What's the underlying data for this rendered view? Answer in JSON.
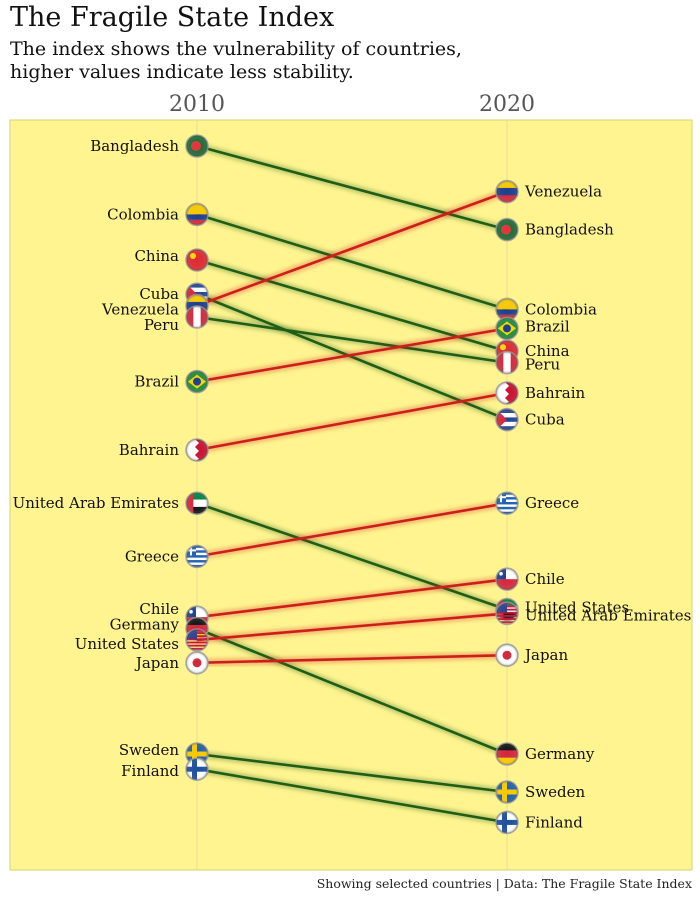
{
  "chart_data": {
    "type": "slope",
    "title": "The Fragile State Index",
    "subtitle_lines": [
      "The index shows the vulnerability of countries,",
      "higher values indicate less stability."
    ],
    "caption": "Showing selected countries | Data: The Fragile State Index",
    "x": [
      "2010",
      "2020"
    ],
    "y_scale": "vertical order: top = less stable, bottom = more stable",
    "colors": {
      "worse": "#cc1f1a",
      "better": "#1f5e14",
      "panel": "#fff490"
    },
    "series": [
      {
        "name": "Bangladesh",
        "values": [
          95.0,
          84.0
        ],
        "flag": "bangladesh-flag"
      },
      {
        "name": "Colombia",
        "values": [
          86.0,
          73.5
        ],
        "flag": "colombia-flag"
      },
      {
        "name": "China",
        "values": [
          80.0,
          68.0
        ],
        "flag": "china-flag"
      },
      {
        "name": "Cuba",
        "values": [
          75.5,
          59.0
        ],
        "flag": "cuba-flag"
      },
      {
        "name": "Venezuela",
        "values": [
          74.0,
          89.0
        ],
        "flag": "venezuela-flag"
      },
      {
        "name": "Peru",
        "values": [
          72.5,
          66.5
        ],
        "flag": "peru-flag"
      },
      {
        "name": "Brazil",
        "values": [
          64.0,
          71.0
        ],
        "flag": "brazil-flag"
      },
      {
        "name": "Bahrain",
        "values": [
          55.0,
          62.5
        ],
        "flag": "bahrain-flag"
      },
      {
        "name": "United Arab Emirates",
        "values": [
          48.0,
          34.0
        ],
        "flag": "uae-flag"
      },
      {
        "name": "Greece",
        "values": [
          41.0,
          48.0
        ],
        "flag": "greece-flag"
      },
      {
        "name": "Chile",
        "values": [
          33.0,
          38.0
        ],
        "flag": "chile-flag"
      },
      {
        "name": "Germany",
        "values": [
          31.5,
          15.0
        ],
        "flag": "germany-flag"
      },
      {
        "name": "United States",
        "values": [
          30.0,
          33.5
        ],
        "flag": "usa-flag"
      },
      {
        "name": "Japan",
        "values": [
          27.0,
          28.0
        ],
        "flag": "japan-flag"
      },
      {
        "name": "Sweden",
        "values": [
          15.0,
          10.0
        ],
        "flag": "sweden-flag"
      },
      {
        "name": "Finland",
        "values": [
          13.0,
          6.0
        ],
        "flag": "finland-flag"
      }
    ]
  }
}
